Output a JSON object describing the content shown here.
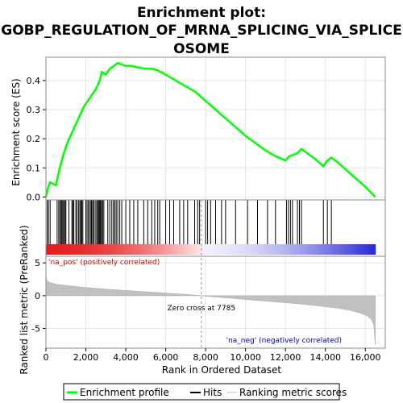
{
  "chart_data": {
    "type": "line",
    "title_lines": [
      "Enrichment plot:",
      "GOBP_REGULATION_OF_MRNA_SPLICING_VIA_SPLICE",
      "OSOME"
    ],
    "xlabel": "Rank in Ordered Dataset",
    "ylabel_top": "Enrichment score (ES)",
    "ylabel_bottom": "Ranked list metric (PreRanked)",
    "x_ticks": [
      0,
      2000,
      4000,
      6000,
      8000,
      10000,
      12000,
      14000,
      16000
    ],
    "x_tick_labels": [
      "0",
      "2,000",
      "4,000",
      "6,000",
      "8,000",
      "10,000",
      "12,000",
      "14,000",
      "16,000"
    ],
    "xlim": [
      0,
      17000
    ],
    "es_ylim": [
      -0.01,
      0.48
    ],
    "es_ticks": [
      0.0,
      0.1,
      0.2,
      0.3,
      0.4
    ],
    "es_tick_labels": [
      "0.0",
      "0.1",
      "0.2",
      "0.3",
      "0.4"
    ],
    "metric_ylim": [
      -8,
      6
    ],
    "metric_ticks": [
      -5,
      0,
      5
    ],
    "metric_tick_labels": [
      "-5",
      "0",
      "5"
    ],
    "n_genes": 16500,
    "zero_cross": 7785,
    "zero_cross_label": "Zero cross at 7785",
    "pos_label": "'na_pos' (positively correlated)",
    "neg_label": "'na_neg' (negatively correlated)",
    "series": [
      {
        "name": "Enrichment profile",
        "color": "#00ff00",
        "x": [
          0,
          100,
          200,
          500,
          700,
          900,
          1100,
          1300,
          1500,
          1700,
          1900,
          2100,
          2300,
          2500,
          2700,
          2800,
          3000,
          3200,
          3400,
          3600,
          3800,
          4000,
          4300,
          4600,
          5000,
          5300,
          5600,
          6000,
          6500,
          7000,
          7500,
          8000,
          8500,
          9000,
          9500,
          10000,
          10500,
          11000,
          11500,
          12000,
          12200,
          12400,
          12600,
          12800,
          13000,
          13500,
          13900,
          14100,
          14300,
          14600,
          15000,
          15500,
          16000,
          16500
        ],
        "y": [
          0.0,
          0.03,
          0.05,
          0.04,
          0.1,
          0.15,
          0.19,
          0.22,
          0.25,
          0.28,
          0.31,
          0.33,
          0.35,
          0.37,
          0.4,
          0.43,
          0.42,
          0.44,
          0.45,
          0.46,
          0.455,
          0.45,
          0.45,
          0.445,
          0.44,
          0.44,
          0.435,
          0.42,
          0.4,
          0.38,
          0.36,
          0.33,
          0.3,
          0.27,
          0.24,
          0.21,
          0.185,
          0.16,
          0.14,
          0.125,
          0.14,
          0.145,
          0.15,
          0.165,
          0.155,
          0.13,
          0.105,
          0.125,
          0.135,
          0.12,
          0.095,
          0.065,
          0.035,
          0.0
        ]
      },
      {
        "name": "Hits",
        "color": "#000000",
        "hits": [
          60,
          130,
          210,
          560,
          640,
          700,
          760,
          800,
          850,
          900,
          960,
          1000,
          1150,
          1300,
          1350,
          1400,
          1500,
          1560,
          1640,
          1700,
          1750,
          1800,
          1850,
          2000,
          2060,
          2120,
          2200,
          2260,
          2300,
          2360,
          2420,
          2500,
          2560,
          2620,
          2660,
          2700,
          2740,
          2790,
          2840,
          2900,
          3100,
          3200,
          3300,
          3380,
          3450,
          3520,
          3600,
          3700,
          3800,
          4000,
          4200,
          4400,
          4600,
          4900,
          5100,
          5300,
          5450,
          5600,
          5700,
          6000,
          6200,
          6400,
          6700,
          6900,
          7100,
          7450,
          7600,
          7700,
          8000,
          8100,
          8250,
          8500,
          8800,
          9000,
          9500,
          10100,
          10600,
          11100,
          11500,
          12050,
          12150,
          12250,
          12350,
          12600,
          12700,
          12800,
          13900,
          14100,
          14300
        ]
      },
      {
        "name": "Ranking metric scores",
        "color": "#c0c0c0",
        "x": [
          0,
          50,
          200,
          500,
          1000,
          2000,
          3000,
          4000,
          5000,
          6000,
          7000,
          7785,
          8500,
          9500,
          10500,
          11500,
          12500,
          13500,
          14500,
          15200,
          15700,
          16100,
          16300,
          16420,
          16500
        ],
        "y": [
          3.0,
          2.3,
          2.0,
          1.75,
          1.55,
          1.25,
          1.0,
          0.8,
          0.6,
          0.4,
          0.2,
          0.0,
          -0.2,
          -0.45,
          -0.7,
          -0.95,
          -1.2,
          -1.5,
          -1.85,
          -2.2,
          -2.6,
          -3.1,
          -3.6,
          -4.4,
          -7.5
        ]
      }
    ],
    "legend": [
      "Enrichment profile",
      "Hits",
      "Ranking metric scores"
    ]
  }
}
